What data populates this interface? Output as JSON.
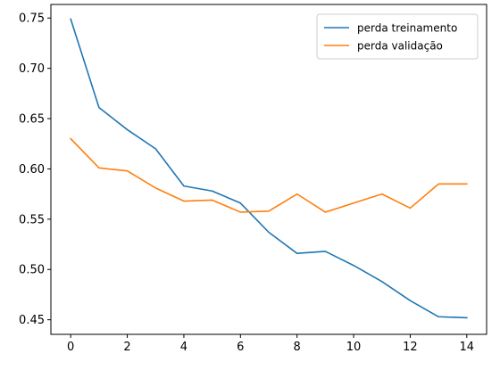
{
  "chart_data": {
    "type": "line",
    "title": "",
    "xlabel": "",
    "ylabel": "",
    "x": [
      0,
      1,
      2,
      3,
      4,
      5,
      6,
      7,
      8,
      9,
      10,
      11,
      12,
      13,
      14
    ],
    "xlim": [
      -0.7,
      14.7
    ],
    "ylim": [
      0.4355,
      0.7635
    ],
    "xticks": [
      0,
      2,
      4,
      6,
      8,
      10,
      12,
      14
    ],
    "yticks": [
      0.45,
      0.5,
      0.55,
      0.6,
      0.65,
      0.7,
      0.75
    ],
    "xtick_labels": [
      "0",
      "2",
      "4",
      "6",
      "8",
      "10",
      "12",
      "14"
    ],
    "ytick_labels": [
      "0.45",
      "0.50",
      "0.55",
      "0.60",
      "0.65",
      "0.70",
      "0.75"
    ],
    "grid": false,
    "legend_position": "top-right",
    "series": [
      {
        "name": "perda treinamento",
        "color": "#1f77b4",
        "values": [
          0.749,
          0.661,
          0.639,
          0.62,
          0.583,
          0.578,
          0.566,
          0.537,
          0.516,
          0.518,
          0.504,
          0.488,
          0.469,
          0.453,
          0.452
        ]
      },
      {
        "name": "perda validação",
        "color": "#ff7f0e",
        "values": [
          0.63,
          0.601,
          0.598,
          0.581,
          0.568,
          0.569,
          0.557,
          0.558,
          0.575,
          0.557,
          0.566,
          0.575,
          0.561,
          0.585,
          0.585
        ]
      }
    ]
  }
}
